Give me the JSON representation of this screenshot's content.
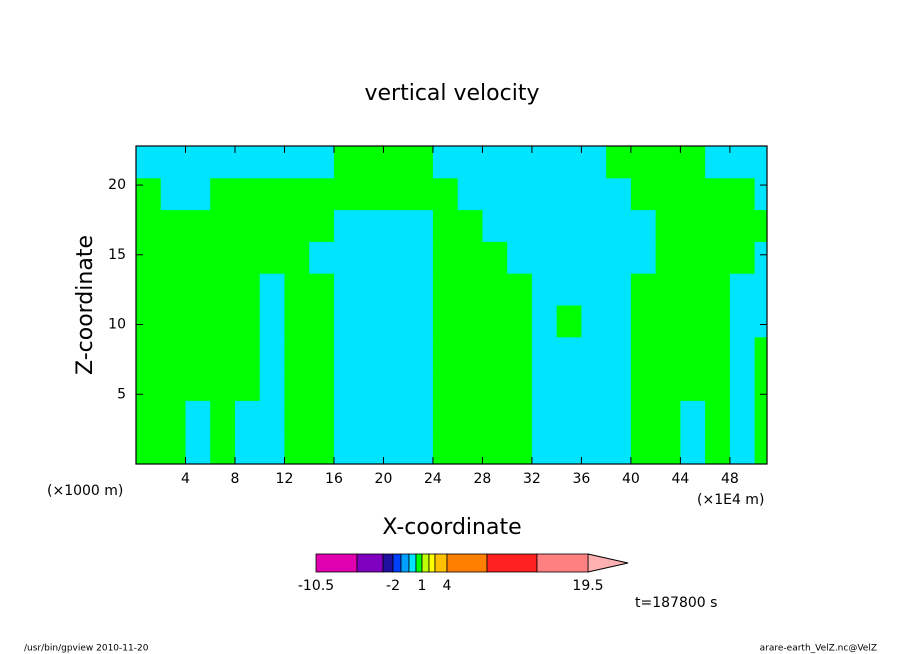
{
  "chart_data": {
    "type": "contour",
    "title": "vertical velocity",
    "xlabel": "X-coordinate",
    "ylabel": "Z-coordinate",
    "x_unit_left": "(×1000 m)",
    "x_unit_right": "(×1E4 m)",
    "time_label": "t=187800 s",
    "footer_left": "/usr/bin/gpview   2010-11-20",
    "footer_right": "arare-earth_VelZ.nc@VelZ",
    "xlim": [
      0,
      51
    ],
    "ylim": [
      0,
      22.8
    ],
    "xticks": [
      4,
      8,
      12,
      16,
      20,
      24,
      28,
      32,
      36,
      40,
      44,
      48
    ],
    "yticks": [
      5,
      10,
      15,
      20
    ],
    "x": [
      1,
      3,
      5,
      7,
      9,
      11,
      13,
      15,
      17,
      19,
      21,
      23,
      25,
      27,
      29,
      31,
      33,
      35,
      37,
      39,
      41,
      43,
      45,
      47,
      49,
      51
    ],
    "y": [
      1.14,
      3.42,
      5.7,
      7.98,
      10.26,
      12.54,
      14.82,
      17.1,
      19.38,
      21.66
    ],
    "z": [
      [
        0.5,
        0.5,
        -0.25,
        0.5,
        -0.25,
        -0.25,
        0.5,
        0.5,
        -0.25,
        -0.25,
        -0.25,
        -0.25,
        0.5,
        0.5,
        0.5,
        0.5,
        -0.25,
        -0.25,
        -0.25,
        -0.25,
        0.5,
        0.5,
        -0.25,
        0.5,
        -0.25,
        0.5
      ],
      [
        0.5,
        0.5,
        -0.25,
        0.5,
        -0.25,
        -0.25,
        0.5,
        0.5,
        -0.25,
        -0.25,
        -0.25,
        -0.25,
        0.5,
        0.5,
        0.5,
        0.5,
        -0.25,
        -0.25,
        -0.25,
        -0.25,
        0.5,
        0.5,
        -0.25,
        0.5,
        -0.25,
        0.5
      ],
      [
        0.5,
        0.5,
        0.5,
        0.5,
        0.5,
        -0.25,
        0.5,
        0.5,
        -0.25,
        -0.25,
        -0.25,
        -0.25,
        0.5,
        0.5,
        0.5,
        0.5,
        -0.25,
        -0.25,
        -0.25,
        -0.25,
        0.5,
        0.5,
        0.5,
        0.5,
        -0.25,
        0.5
      ],
      [
        0.5,
        0.5,
        0.5,
        0.5,
        0.5,
        -0.25,
        0.5,
        0.5,
        -0.25,
        -0.25,
        -0.25,
        -0.25,
        0.5,
        0.5,
        0.5,
        0.5,
        -0.25,
        -0.25,
        -0.25,
        -0.25,
        0.5,
        0.5,
        0.5,
        0.5,
        -0.25,
        0.5
      ],
      [
        0.5,
        0.5,
        0.5,
        0.5,
        0.5,
        -0.25,
        0.5,
        0.5,
        -0.25,
        -0.25,
        -0.25,
        -0.25,
        0.5,
        0.5,
        0.5,
        0.5,
        -0.25,
        0.5,
        -0.25,
        -0.25,
        0.5,
        0.5,
        0.5,
        0.5,
        -0.25,
        -0.25
      ],
      [
        0.5,
        0.5,
        0.5,
        0.5,
        0.5,
        -0.25,
        0.5,
        0.5,
        -0.25,
        -0.25,
        -0.25,
        -0.25,
        0.5,
        0.5,
        0.5,
        0.5,
        -0.25,
        -0.25,
        -0.25,
        -0.25,
        0.5,
        0.5,
        0.5,
        0.5,
        -0.25,
        -0.25
      ],
      [
        0.5,
        0.5,
        0.5,
        0.5,
        0.5,
        0.5,
        0.5,
        -0.25,
        -0.25,
        -0.25,
        -0.25,
        -0.25,
        0.5,
        0.5,
        0.5,
        -0.25,
        -0.25,
        -0.25,
        -0.25,
        -0.25,
        -0.25,
        0.5,
        0.5,
        0.5,
        0.5,
        -0.25
      ],
      [
        0.5,
        0.5,
        0.5,
        0.5,
        0.5,
        0.5,
        0.5,
        0.5,
        -0.25,
        -0.25,
        -0.25,
        -0.25,
        0.5,
        0.5,
        -0.25,
        -0.25,
        -0.25,
        -0.25,
        -0.25,
        -0.25,
        -0.25,
        0.5,
        0.5,
        0.5,
        0.5,
        0.5
      ],
      [
        0.5,
        -0.25,
        -0.25,
        0.5,
        0.5,
        0.5,
        0.5,
        0.5,
        0.5,
        0.5,
        0.5,
        0.5,
        0.5,
        -0.25,
        -0.25,
        -0.25,
        -0.25,
        -0.25,
        -0.25,
        -0.25,
        0.5,
        0.5,
        0.5,
        0.5,
        0.5,
        -0.25
      ],
      [
        -0.25,
        -0.25,
        -0.25,
        -0.25,
        -0.25,
        -0.25,
        -0.25,
        -0.25,
        0.5,
        0.5,
        0.5,
        0.5,
        -0.25,
        -0.25,
        -0.25,
        -0.25,
        -0.25,
        -0.25,
        -0.25,
        0.5,
        0.5,
        0.5,
        0.5,
        -0.25,
        -0.25,
        -0.25
      ]
    ],
    "levels": [
      -10.5,
      -5,
      -3,
      -2,
      -1,
      -0.5,
      0,
      1,
      2,
      3,
      4,
      8,
      13,
      19.5
    ],
    "colors": [
      "#e000b0",
      "#8000c0",
      "#2010a0",
      "#0040ff",
      "#00a0ff",
      "#00e5ff",
      "#00ff00",
      "#c0ff00",
      "#ffff00",
      "#ffc000",
      "#ff8000",
      "#ff2020",
      "#ff8080"
    ],
    "colorbar_ticks": [
      -10.5,
      -2,
      1,
      4,
      19.5
    ]
  }
}
